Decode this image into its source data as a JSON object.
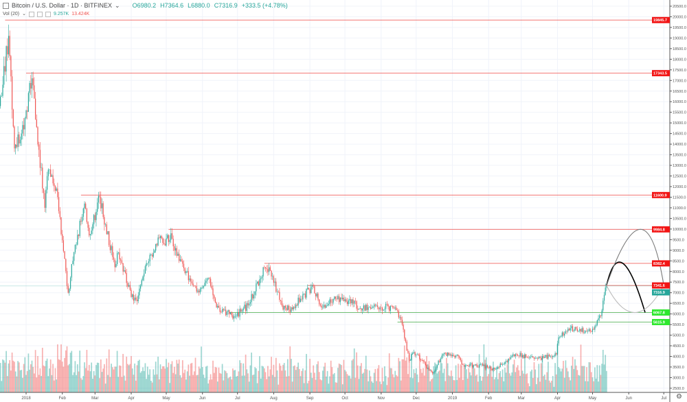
{
  "header": {
    "symbol": "Bitcoin / U.S. Dollar · 1D · BITFINEX",
    "open": "O6980.2",
    "high": "H7364.6",
    "low": "L6880.0",
    "close": "C7316.9",
    "change": "+333.5 (+4.78%)"
  },
  "volume_legend": {
    "label": "Vol (20)",
    "value_up": "9.257K",
    "value_down": "13.424K"
  },
  "colors": {
    "up": "#26a69a",
    "down": "#ef5350",
    "resistance_line": "#ef5350",
    "support_line": "#4caf50",
    "last_price": "#26a69a",
    "projection_main": "#000000",
    "projection_alt": "#888888"
  },
  "chart_data": {
    "type": "candlestick",
    "interval": "1D",
    "ylim": [
      2300,
      20800
    ],
    "y_ticks": [
      2500,
      3000,
      3500,
      4000,
      4500,
      5000,
      5500,
      6000,
      6500,
      7000,
      7500,
      8000,
      8500,
      9000,
      9500,
      10000,
      10500,
      11000,
      11500,
      12000,
      12500,
      13000,
      13500,
      14000,
      14500,
      15000,
      15500,
      16000,
      16500,
      17000,
      17500,
      18000,
      18500,
      19000,
      19500,
      20000,
      20500
    ],
    "x_ticks": [
      {
        "date": "2018-01-01",
        "label": "2018"
      },
      {
        "date": "2018-02-01",
        "label": "Feb"
      },
      {
        "date": "2018-03-01",
        "label": "Mar"
      },
      {
        "date": "2018-04-01",
        "label": "Apr"
      },
      {
        "date": "2018-05-01",
        "label": "May"
      },
      {
        "date": "2018-06-01",
        "label": "Jun"
      },
      {
        "date": "2018-07-01",
        "label": "Jul"
      },
      {
        "date": "2018-08-01",
        "label": "Aug"
      },
      {
        "date": "2018-09-01",
        "label": "Sep"
      },
      {
        "date": "2018-10-01",
        "label": "Oct"
      },
      {
        "date": "2018-11-01",
        "label": "Nov"
      },
      {
        "date": "2018-12-01",
        "label": "Dec"
      },
      {
        "date": "2019-01-01",
        "label": "2019"
      },
      {
        "date": "2019-02-01",
        "label": "Feb"
      },
      {
        "date": "2019-03-01",
        "label": "Mar"
      },
      {
        "date": "2019-04-01",
        "label": "Apr"
      },
      {
        "date": "2019-05-01",
        "label": "May"
      },
      {
        "date": "2019-06-01",
        "label": "Jun"
      },
      {
        "date": "2019-07-01",
        "label": "Jul"
      }
    ],
    "approx_closes": [
      [
        "2017-12-08",
        16000
      ],
      [
        "2017-12-12",
        16800
      ],
      [
        "2017-12-17",
        19100
      ],
      [
        "2017-12-22",
        13800
      ],
      [
        "2017-12-28",
        14500
      ],
      [
        "2018-01-06",
        17100
      ],
      [
        "2018-01-10",
        14800
      ],
      [
        "2018-01-17",
        11000
      ],
      [
        "2018-01-20",
        12800
      ],
      [
        "2018-01-28",
        11500
      ],
      [
        "2018-02-06",
        7000
      ],
      [
        "2018-02-10",
        8500
      ],
      [
        "2018-02-20",
        11200
      ],
      [
        "2018-02-24",
        9700
      ],
      [
        "2018-03-05",
        11500
      ],
      [
        "2018-03-18",
        8200
      ],
      [
        "2018-03-21",
        8900
      ],
      [
        "2018-04-01",
        6800
      ],
      [
        "2018-04-06",
        6600
      ],
      [
        "2018-04-12",
        7900
      ],
      [
        "2018-04-24",
        9600
      ],
      [
        "2018-04-29",
        9300
      ],
      [
        "2018-05-05",
        9800
      ],
      [
        "2018-05-12",
        8500
      ],
      [
        "2018-05-28",
        7100
      ],
      [
        "2018-06-06",
        7700
      ],
      [
        "2018-06-13",
        6300
      ],
      [
        "2018-06-29",
        5900
      ],
      [
        "2018-07-10",
        6400
      ],
      [
        "2018-07-24",
        8200
      ],
      [
        "2018-07-28",
        8200
      ],
      [
        "2018-08-08",
        6400
      ],
      [
        "2018-08-14",
        6200
      ],
      [
        "2018-09-04",
        7300
      ],
      [
        "2018-09-11",
        6300
      ],
      [
        "2018-09-21",
        6700
      ],
      [
        "2018-10-10",
        6600
      ],
      [
        "2018-10-11",
        6250
      ],
      [
        "2018-10-31",
        6300
      ],
      [
        "2018-11-13",
        6300
      ],
      [
        "2018-11-19",
        5500
      ],
      [
        "2018-11-25",
        3800
      ],
      [
        "2018-11-29",
        4200
      ],
      [
        "2018-12-15",
        3200
      ],
      [
        "2018-12-24",
        4100
      ],
      [
        "2019-01-06",
        4000
      ],
      [
        "2019-01-10",
        3600
      ],
      [
        "2019-01-27",
        3550
      ],
      [
        "2019-02-07",
        3400
      ],
      [
        "2019-02-24",
        4100
      ],
      [
        "2019-03-15",
        3900
      ],
      [
        "2019-03-31",
        4100
      ],
      [
        "2019-04-02",
        4900
      ],
      [
        "2019-04-10",
        5300
      ],
      [
        "2019-04-25",
        5200
      ],
      [
        "2019-05-01",
        5300
      ],
      [
        "2019-05-08",
        5900
      ],
      [
        "2019-05-11",
        6900
      ],
      [
        "2019-05-13",
        7316.9
      ]
    ],
    "last_price": 7316.9,
    "horizontal_levels": [
      {
        "price": 19845.7,
        "label": "19845.7",
        "kind": "resistance",
        "from": "2017-12-14"
      },
      {
        "price": 17343.5,
        "label": "17343.5",
        "kind": "resistance",
        "from": "2018-01-01"
      },
      {
        "price": 11600.9,
        "label": "11600.9",
        "kind": "resistance",
        "from": "2018-02-17"
      },
      {
        "price": 9984.8,
        "label": "9984.8",
        "kind": "resistance",
        "from": "2018-05-03"
      },
      {
        "price": 8382.4,
        "label": "8382.4",
        "kind": "resistance",
        "from": "2018-07-24"
      },
      {
        "price": 7341.6,
        "label": "7341.6",
        "kind": "resistance",
        "from": "2018-08-30"
      },
      {
        "price": 6067.8,
        "label": "6067.8",
        "kind": "support",
        "from": "2018-06-24"
      },
      {
        "price": 5615.9,
        "label": "5615.9",
        "kind": "support",
        "from": "2018-11-15"
      }
    ],
    "projections": [
      {
        "kind": "main",
        "points": [
          [
            "2019-05-13",
            7341.6
          ],
          [
            "2019-05-27",
            8382.4
          ],
          [
            "2019-06-15",
            6067.8
          ]
        ]
      },
      {
        "kind": "alt-up",
        "points": [
          [
            "2019-05-13",
            7341.6
          ],
          [
            "2019-06-11",
            9984.8
          ],
          [
            "2019-07-01",
            7341.6
          ]
        ]
      },
      {
        "kind": "alt-down",
        "points": [
          [
            "2019-05-13",
            7341.6
          ],
          [
            "2019-06-06",
            6067.8
          ],
          [
            "2019-07-01",
            7341.6
          ]
        ]
      }
    ]
  }
}
